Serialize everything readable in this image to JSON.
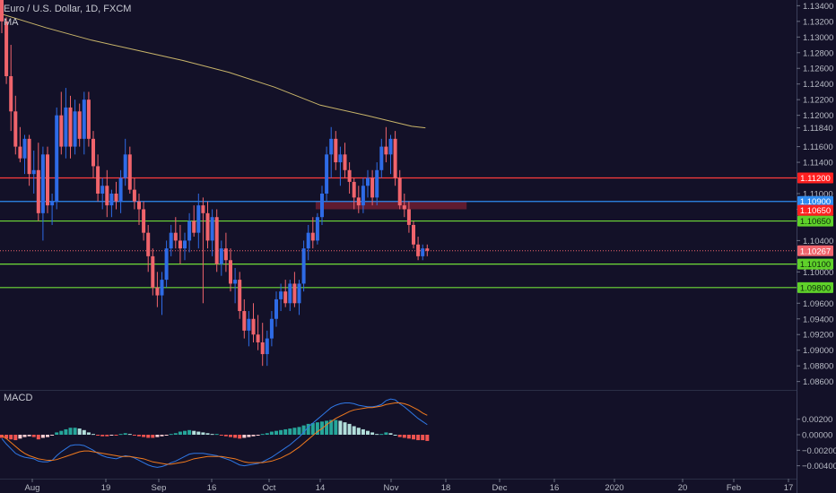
{
  "header": {
    "title": "Euro / U.S. Dollar, 1D, FXCM",
    "indicator": "MA",
    "macd_label": "MACD"
  },
  "colors": {
    "background": "#131128",
    "up": "#2e6be6",
    "down": "#f0646c",
    "ma": "#c9b56a",
    "red_line": "#ff3c3c",
    "blue_line": "#2e8bf0",
    "green_line": "#6fdc38",
    "zone": "#7a1f33",
    "macd_line": "#2f78e6",
    "signal_line": "#f07a1e",
    "hist_pos_strong": "#26a69a",
    "hist_pos_weak": "#b2dfdb",
    "hist_neg_strong": "#ef5350",
    "hist_neg_weak": "#ffcdd2"
  },
  "chart_data": [
    {
      "type": "candlestick",
      "title": "Euro / U.S. Dollar, 1D, FXCM",
      "ylim": [
        1.0855,
        1.1345
      ],
      "price_ticks": [
        1.134,
        1.132,
        1.13,
        1.128,
        1.126,
        1.124,
        1.122,
        1.12,
        1.1184,
        1.116,
        1.114,
        1.11,
        1.108,
        1.104,
        1.1,
        1.096,
        1.094,
        1.092,
        1.09,
        1.088,
        1.086
      ],
      "x_ticks": [
        "Aug",
        "19",
        "Sep",
        "16",
        "Oct",
        "14",
        "Nov",
        "18",
        "Dec",
        "16",
        "2020",
        "20",
        "Feb",
        "17"
      ],
      "candles": [
        [
          1.1355,
          1.1355,
          1.1305,
          1.132
        ],
        [
          1.132,
          1.1325,
          1.124,
          1.125
        ],
        [
          1.125,
          1.129,
          1.118,
          1.1205
        ],
        [
          1.1205,
          1.1225,
          1.115,
          1.116
        ],
        [
          1.116,
          1.1185,
          1.114,
          1.1145
        ],
        [
          1.1145,
          1.1175,
          1.1125,
          1.117
        ],
        [
          1.117,
          1.1175,
          1.111,
          1.1125
        ],
        [
          1.1125,
          1.1155,
          1.11,
          1.113
        ],
        [
          1.113,
          1.1165,
          1.1065,
          1.1075
        ],
        [
          1.1075,
          1.116,
          1.104,
          1.115
        ],
        [
          1.115,
          1.116,
          1.1075,
          1.1085
        ],
        [
          1.1085,
          1.11,
          1.106,
          1.109
        ],
        [
          1.109,
          1.121,
          1.108,
          1.12
        ],
        [
          1.12,
          1.123,
          1.115,
          1.116
        ],
        [
          1.116,
          1.1235,
          1.1145,
          1.121
        ],
        [
          1.121,
          1.1225,
          1.1145,
          1.116
        ],
        [
          1.116,
          1.122,
          1.115,
          1.1205
        ],
        [
          1.1205,
          1.1215,
          1.116,
          1.117
        ],
        [
          1.117,
          1.123,
          1.115,
          1.122
        ],
        [
          1.122,
          1.123,
          1.116,
          1.117
        ],
        [
          1.117,
          1.118,
          1.112,
          1.1135
        ],
        [
          1.1135,
          1.115,
          1.109,
          1.11
        ],
        [
          1.11,
          1.112,
          1.108,
          1.111
        ],
        [
          1.111,
          1.113,
          1.107,
          1.1085
        ],
        [
          1.1085,
          1.1105,
          1.107,
          1.11
        ],
        [
          1.11,
          1.1115,
          1.108,
          1.109
        ],
        [
          1.109,
          1.113,
          1.1075,
          1.112
        ],
        [
          1.112,
          1.117,
          1.111,
          1.115
        ],
        [
          1.115,
          1.116,
          1.11,
          1.1105
        ],
        [
          1.1105,
          1.112,
          1.108,
          1.109
        ],
        [
          1.109,
          1.11,
          1.106,
          1.108
        ],
        [
          1.108,
          1.109,
          1.104,
          1.105
        ],
        [
          1.105,
          1.106,
          1.1,
          1.102
        ],
        [
          1.102,
          1.103,
          1.097,
          1.098
        ],
        [
          1.098,
          1.1,
          1.0955,
          1.097
        ],
        [
          1.097,
          1.1,
          1.0945,
          1.099
        ],
        [
          1.099,
          1.104,
          1.098,
          1.103
        ],
        [
          1.103,
          1.106,
          1.102,
          1.105
        ],
        [
          1.105,
          1.107,
          1.103,
          1.104
        ],
        [
          1.104,
          1.106,
          1.101,
          1.103
        ],
        [
          1.103,
          1.105,
          1.1015,
          1.104
        ],
        [
          1.104,
          1.1075,
          1.1025,
          1.1065
        ],
        [
          1.1065,
          1.1085,
          1.1045,
          1.105
        ],
        [
          1.105,
          1.11,
          1.103,
          1.1085
        ],
        [
          1.1085,
          1.1095,
          1.096,
          1.1075
        ],
        [
          1.1075,
          1.109,
          1.103,
          1.104
        ],
        [
          1.104,
          1.108,
          1.102,
          1.107
        ],
        [
          1.107,
          1.108,
          1.1,
          1.101
        ],
        [
          1.101,
          1.104,
          1.0995,
          1.103
        ],
        [
          1.103,
          1.105,
          1.1,
          1.1015
        ],
        [
          1.1015,
          1.103,
          1.0975,
          1.0985
        ],
        [
          1.0985,
          1.1005,
          1.096,
          1.099
        ],
        [
          1.099,
          1.1,
          1.094,
          1.095
        ],
        [
          1.095,
          1.0965,
          1.0915,
          1.0925
        ],
        [
          1.0925,
          1.095,
          1.0905,
          1.094
        ],
        [
          1.094,
          1.096,
          1.091,
          1.092
        ],
        [
          1.092,
          1.0945,
          1.09,
          1.091
        ],
        [
          1.091,
          1.0935,
          1.088,
          1.0895
        ],
        [
          1.0895,
          1.0925,
          1.088,
          1.0915
        ],
        [
          1.0915,
          1.095,
          1.0905,
          1.094
        ],
        [
          1.094,
          1.0975,
          1.093,
          1.0965
        ],
        [
          1.0965,
          1.0985,
          1.095,
          1.0975
        ],
        [
          1.0975,
          1.099,
          1.0955,
          1.096
        ],
        [
          1.096,
          1.099,
          1.095,
          1.0985
        ],
        [
          1.0985,
          1.1,
          1.0955,
          1.096
        ],
        [
          1.096,
          1.099,
          1.0945,
          1.0985
        ],
        [
          1.0985,
          1.104,
          1.0975,
          1.103
        ],
        [
          1.103,
          1.106,
          1.1015,
          1.105
        ],
        [
          1.105,
          1.107,
          1.103,
          1.104
        ],
        [
          1.104,
          1.1075,
          1.1035,
          1.107
        ],
        [
          1.107,
          1.111,
          1.106,
          1.11
        ],
        [
          1.11,
          1.116,
          1.109,
          1.115
        ],
        [
          1.115,
          1.1185,
          1.112,
          1.117
        ],
        [
          1.117,
          1.118,
          1.113,
          1.114
        ],
        [
          1.114,
          1.116,
          1.111,
          1.115
        ],
        [
          1.115,
          1.1165,
          1.112,
          1.113
        ],
        [
          1.113,
          1.114,
          1.11,
          1.1115
        ],
        [
          1.1115,
          1.112,
          1.108,
          1.1095
        ],
        [
          1.1095,
          1.111,
          1.1075,
          1.1085
        ],
        [
          1.1085,
          1.112,
          1.1075,
          1.111
        ],
        [
          1.111,
          1.113,
          1.1095,
          1.112
        ],
        [
          1.112,
          1.113,
          1.1085,
          1.1095
        ],
        [
          1.1095,
          1.114,
          1.1085,
          1.113
        ],
        [
          1.113,
          1.117,
          1.112,
          1.116
        ],
        [
          1.116,
          1.1185,
          1.114,
          1.115
        ],
        [
          1.115,
          1.1175,
          1.1125,
          1.117
        ],
        [
          1.117,
          1.118,
          1.111,
          1.112
        ],
        [
          1.112,
          1.113,
          1.108,
          1.1085
        ],
        [
          1.1085,
          1.11,
          1.107,
          1.108
        ],
        [
          1.108,
          1.109,
          1.105,
          1.106
        ],
        [
          1.106,
          1.1065,
          1.103,
          1.1035
        ],
        [
          1.1035,
          1.1045,
          1.1015,
          1.102
        ],
        [
          1.102,
          1.1035,
          1.1015,
          1.103
        ],
        [
          1.103,
          1.1035,
          1.102,
          1.1027
        ]
      ]
    },
    {
      "type": "macd",
      "title": "MACD",
      "ylim": [
        -0.0052,
        0.0052
      ],
      "ticks": [
        0.002,
        0.0,
        -0.002,
        -0.004
      ],
      "tick_labels": [
        "0.00200",
        "0.00000",
        "−0.00200",
        "−0.00400"
      ],
      "histogram": [
        -0.0004,
        -0.0005,
        -0.0006,
        -0.0007,
        -0.0005,
        -0.0003,
        -0.0002,
        -0.0003,
        -0.0006,
        -0.0004,
        -0.0003,
        -0.0001,
        0.0003,
        0.0005,
        0.0007,
        0.0009,
        0.0009,
        0.0008,
        0.0006,
        0.0003,
        0.0001,
        -0.0001,
        -0.0002,
        -0.0002,
        -0.0001,
        -0.0001,
        0.0001,
        0.0002,
        0.0001,
        -0.0001,
        -0.0002,
        -0.0003,
        -0.0004,
        -0.0004,
        -0.0003,
        -0.0002,
        -0.0001,
        0.0001,
        0.0002,
        0.0004,
        0.0005,
        0.0006,
        0.0005,
        0.0004,
        0.0003,
        0.0002,
        0.0001,
        0.0001,
        -0.0001,
        -0.0002,
        -0.0003,
        -0.0004,
        -0.0005,
        -0.0004,
        -0.0003,
        -0.0002,
        -0.0001,
        0.0001,
        0.0002,
        0.0004,
        0.0005,
        0.0006,
        0.0007,
        0.0008,
        0.0009,
        0.001,
        0.0012,
        0.0014,
        0.0015,
        0.0016,
        0.0017,
        0.0018,
        0.0019,
        0.0019,
        0.0018,
        0.0016,
        0.0014,
        0.0011,
        0.0009,
        0.0007,
        0.0005,
        0.0003,
        0.0001,
        0.0001,
        0.0003,
        0.0002,
        0.0,
        -0.0003,
        -0.0004,
        -0.0005,
        -0.0006,
        -0.0007,
        -0.0007,
        -0.0008
      ],
      "macd": [
        -0.0005,
        -0.0012,
        -0.0018,
        -0.0024,
        -0.0027,
        -0.0029,
        -0.003,
        -0.0031,
        -0.0034,
        -0.0035,
        -0.0035,
        -0.0033,
        -0.0027,
        -0.0022,
        -0.0018,
        -0.0014,
        -0.0013,
        -0.0013,
        -0.0014,
        -0.0017,
        -0.002,
        -0.0024,
        -0.0027,
        -0.0029,
        -0.003,
        -0.0031,
        -0.0029,
        -0.0027,
        -0.0028,
        -0.003,
        -0.0033,
        -0.0036,
        -0.0039,
        -0.0041,
        -0.0042,
        -0.0041,
        -0.0039,
        -0.0036,
        -0.0034,
        -0.0031,
        -0.0028,
        -0.0025,
        -0.0024,
        -0.0024,
        -0.0024,
        -0.0025,
        -0.0026,
        -0.0027,
        -0.0029,
        -0.0031,
        -0.0033,
        -0.0036,
        -0.0039,
        -0.004,
        -0.0039,
        -0.0038,
        -0.0037,
        -0.0035,
        -0.0032,
        -0.0029,
        -0.0025,
        -0.0021,
        -0.0017,
        -0.0013,
        -0.0008,
        -0.0003,
        0.0003,
        0.001,
        0.0015,
        0.002,
        0.0025,
        0.003,
        0.0035,
        0.0038,
        0.004,
        0.0041,
        0.0041,
        0.004,
        0.0038,
        0.0037,
        0.0036,
        0.0036,
        0.0037,
        0.0039,
        0.0044,
        0.0046,
        0.0045,
        0.004,
        0.0036,
        0.0031,
        0.0026,
        0.0021,
        0.0017,
        0.0013
      ],
      "signal": [
        -0.0001,
        -0.0005,
        -0.001,
        -0.0015,
        -0.002,
        -0.0024,
        -0.0027,
        -0.0029,
        -0.0031,
        -0.0032,
        -0.0033,
        -0.0033,
        -0.0032,
        -0.003,
        -0.0028,
        -0.0026,
        -0.0024,
        -0.0022,
        -0.0021,
        -0.0021,
        -0.0022,
        -0.0023,
        -0.0024,
        -0.0025,
        -0.0026,
        -0.0027,
        -0.0028,
        -0.0028,
        -0.0028,
        -0.0029,
        -0.003,
        -0.0031,
        -0.0033,
        -0.0035,
        -0.0036,
        -0.0037,
        -0.0038,
        -0.0038,
        -0.0037,
        -0.0036,
        -0.0035,
        -0.0033,
        -0.0031,
        -0.003,
        -0.0029,
        -0.0028,
        -0.0028,
        -0.0028,
        -0.0028,
        -0.0029,
        -0.003,
        -0.0031,
        -0.0033,
        -0.0035,
        -0.0036,
        -0.0036,
        -0.0036,
        -0.0036,
        -0.0035,
        -0.0034,
        -0.0032,
        -0.003,
        -0.0027,
        -0.0024,
        -0.002,
        -0.0016,
        -0.0011,
        -0.0006,
        -0.0001,
        0.0004,
        0.0008,
        0.0013,
        0.0017,
        0.0021,
        0.0024,
        0.0027,
        0.003,
        0.0032,
        0.0033,
        0.0034,
        0.0035,
        0.0035,
        0.0036,
        0.0037,
        0.0039,
        0.004,
        0.0041,
        0.0041,
        0.004,
        0.0038,
        0.0035,
        0.0032,
        0.0028,
        0.0025
      ]
    }
  ],
  "moving_average": [
    [
      0,
      1.133
    ],
    [
      10,
      1.1312
    ],
    [
      20,
      1.1296
    ],
    [
      30,
      1.1283
    ],
    [
      40,
      1.127
    ],
    [
      50,
      1.1255
    ],
    [
      60,
      1.1236
    ],
    [
      70,
      1.1213
    ],
    [
      80,
      1.12
    ],
    [
      90,
      1.1186
    ],
    [
      93,
      1.1184
    ]
  ],
  "levels": [
    {
      "name": "red",
      "price": 1.112,
      "label": "1.11200",
      "color": "#ff3c3c",
      "label_color": "#ff2020",
      "text_color": "#ffffff"
    },
    {
      "name": "blue",
      "price": 1.109,
      "label": "1.10900",
      "color": "#2e8bf0",
      "label_color": "#2e8bf0",
      "text_color": "#ffffff"
    },
    {
      "name": "green-upper",
      "price": 1.1065,
      "label": "1.10650",
      "color": "#6fdc38",
      "label_color": "#5fd12a",
      "text_color": "#0b2a0b"
    },
    {
      "name": "green-middle",
      "price": 1.101,
      "label": "1.10100",
      "color": "#6fdc38",
      "label_color": "#5fd12a",
      "text_color": "#0b2a0b"
    },
    {
      "name": "green-lower",
      "price": 1.098,
      "label": "1.09800",
      "color": "#6fdc38",
      "label_color": "#5fd12a",
      "text_color": "#0b2a0b"
    }
  ],
  "extra_tags": [
    {
      "price": 1.1065,
      "label": "1.10650",
      "color": "#ff2020",
      "text_color": "#ffffff",
      "offset": -12
    },
    {
      "price": 1.1027,
      "label": "1.10267",
      "color": "#f0646c",
      "text_color": "#ffffff",
      "offset": 0
    }
  ],
  "zone": {
    "start_index": 69,
    "end_index": 102,
    "top": 1.109,
    "bottom": 1.108
  },
  "last_price": {
    "value": 1.1027,
    "label": "1.10267"
  }
}
